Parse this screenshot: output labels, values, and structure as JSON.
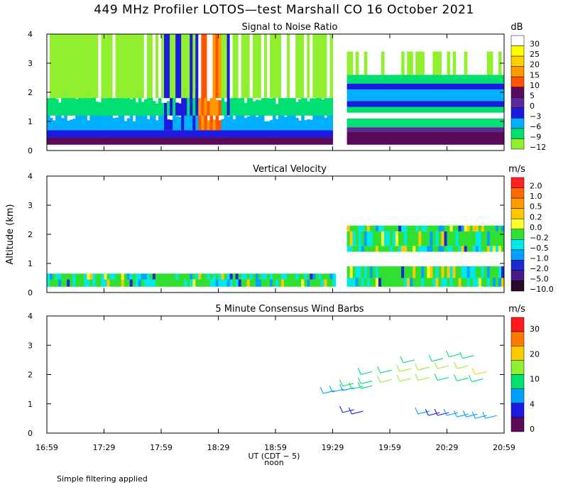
{
  "title": "449 MHz Profiler LOTOS—test Marshall CO 16 October 2021",
  "footnote": "Simple filtering applied",
  "chart_data": [
    {
      "type": "heatmap",
      "title": "Signal to Noise Ratio",
      "unit": "dB",
      "ylabel": "",
      "ylim": [
        0,
        4
      ],
      "yticks": [
        "0",
        "1",
        "2",
        "3",
        "4"
      ],
      "colorbar_labels": [
        "30",
        "25",
        "20",
        "15",
        "10",
        "5",
        "0",
        "−3",
        "−6",
        "−9",
        "−12"
      ],
      "colors": [
        "#ffffff",
        "#ffff00",
        "#ffd000",
        "#ff9900",
        "#ff5500",
        "#5a0a5a",
        "#5a2a9a",
        "#1a1ae0",
        "#00b0ff",
        "#00e070",
        "#90f030"
      ],
      "data_gap_hours": [
        19.5,
        19.6
      ]
    },
    {
      "type": "heatmap",
      "title": "Vertical Velocity",
      "unit": "m/s",
      "ylabel": "Altitude (km)",
      "ylim": [
        0,
        4
      ],
      "yticks": [
        "0",
        "1",
        "2",
        "3",
        "4"
      ],
      "colorbar_labels": [
        "2.0",
        "1.0",
        "0.5",
        "0.2",
        "0.0",
        "−0.2",
        "−0.5",
        "−1.0",
        "−2.0",
        "−5.0",
        "−10.0"
      ],
      "colors": [
        "#ff2020",
        "#ff6a00",
        "#ff9a00",
        "#ffc800",
        "#ffff30",
        "#30e030",
        "#00e8e8",
        "#00a0ff",
        "#1a2ad0",
        "#4a1a8a",
        "#2a0a2a"
      ]
    },
    {
      "type": "scatter",
      "title": "5 Minute Consensus Wind Barbs",
      "unit": "m/s",
      "ylabel": "",
      "ylim": [
        0,
        4
      ],
      "yticks": [
        "0",
        "1",
        "2",
        "3",
        "4"
      ],
      "colorbar_labels": [
        "30",
        "20",
        "10",
        "4",
        "0"
      ],
      "colors": [
        "#ff1a1a",
        "#ff7a00",
        "#ffc800",
        "#90f030",
        "#00e070",
        "#00a0ff",
        "#1a1ae0",
        "#5a0a5a"
      ],
      "barbs": [
        {
          "t": 19.5,
          "alt": 1.45,
          "speed": 5
        },
        {
          "t": 19.58,
          "alt": 1.5,
          "speed": 5
        },
        {
          "t": 19.67,
          "alt": 1.55,
          "speed": 5
        },
        {
          "t": 19.75,
          "alt": 1.6,
          "speed": 6
        },
        {
          "t": 19.83,
          "alt": 1.62,
          "speed": 6
        },
        {
          "t": 19.67,
          "alt": 1.7,
          "speed": 9
        },
        {
          "t": 19.83,
          "alt": 1.78,
          "speed": 9
        },
        {
          "t": 20.0,
          "alt": 1.83,
          "speed": 10
        },
        {
          "t": 20.17,
          "alt": 1.87,
          "speed": 10
        },
        {
          "t": 20.33,
          "alt": 1.9,
          "speed": 10
        },
        {
          "t": 20.5,
          "alt": 1.9,
          "speed": 9
        },
        {
          "t": 20.67,
          "alt": 1.88,
          "speed": 9
        },
        {
          "t": 20.8,
          "alt": 1.85,
          "speed": 8
        },
        {
          "t": 19.83,
          "alt": 2.1,
          "speed": 9
        },
        {
          "t": 20.0,
          "alt": 2.15,
          "speed": 9
        },
        {
          "t": 20.17,
          "alt": 2.2,
          "speed": 10
        },
        {
          "t": 20.33,
          "alt": 2.25,
          "speed": 10
        },
        {
          "t": 20.5,
          "alt": 2.3,
          "speed": 11
        },
        {
          "t": 20.67,
          "alt": 2.3,
          "speed": 12
        },
        {
          "t": 20.83,
          "alt": 2.1,
          "speed": 14
        },
        {
          "t": 20.2,
          "alt": 2.5,
          "speed": 9
        },
        {
          "t": 20.45,
          "alt": 2.55,
          "speed": 9
        },
        {
          "t": 20.6,
          "alt": 2.7,
          "speed": 9
        },
        {
          "t": 20.72,
          "alt": 2.65,
          "speed": 9
        },
        {
          "t": 19.67,
          "alt": 0.8,
          "speed": 2
        },
        {
          "t": 19.75,
          "alt": 0.75,
          "speed": 2
        },
        {
          "t": 20.33,
          "alt": 0.75,
          "speed": 4
        },
        {
          "t": 20.42,
          "alt": 0.7,
          "speed": 3
        },
        {
          "t": 20.5,
          "alt": 0.7,
          "speed": 3
        },
        {
          "t": 20.58,
          "alt": 0.7,
          "speed": 4
        },
        {
          "t": 20.67,
          "alt": 0.65,
          "speed": 4
        },
        {
          "t": 20.75,
          "alt": 0.65,
          "speed": 4
        },
        {
          "t": 20.83,
          "alt": 0.6,
          "speed": 4
        },
        {
          "t": 20.92,
          "alt": 0.6,
          "speed": 4
        }
      ]
    }
  ],
  "xaxis": {
    "ticks": [
      "16:59",
      "17:29",
      "17:59",
      "18:29",
      "18:59",
      "19:29",
      "19:59",
      "20:29",
      "20:59"
    ],
    "xlabel": "UT  (CDT − 5)",
    "noon_label": "noon"
  }
}
